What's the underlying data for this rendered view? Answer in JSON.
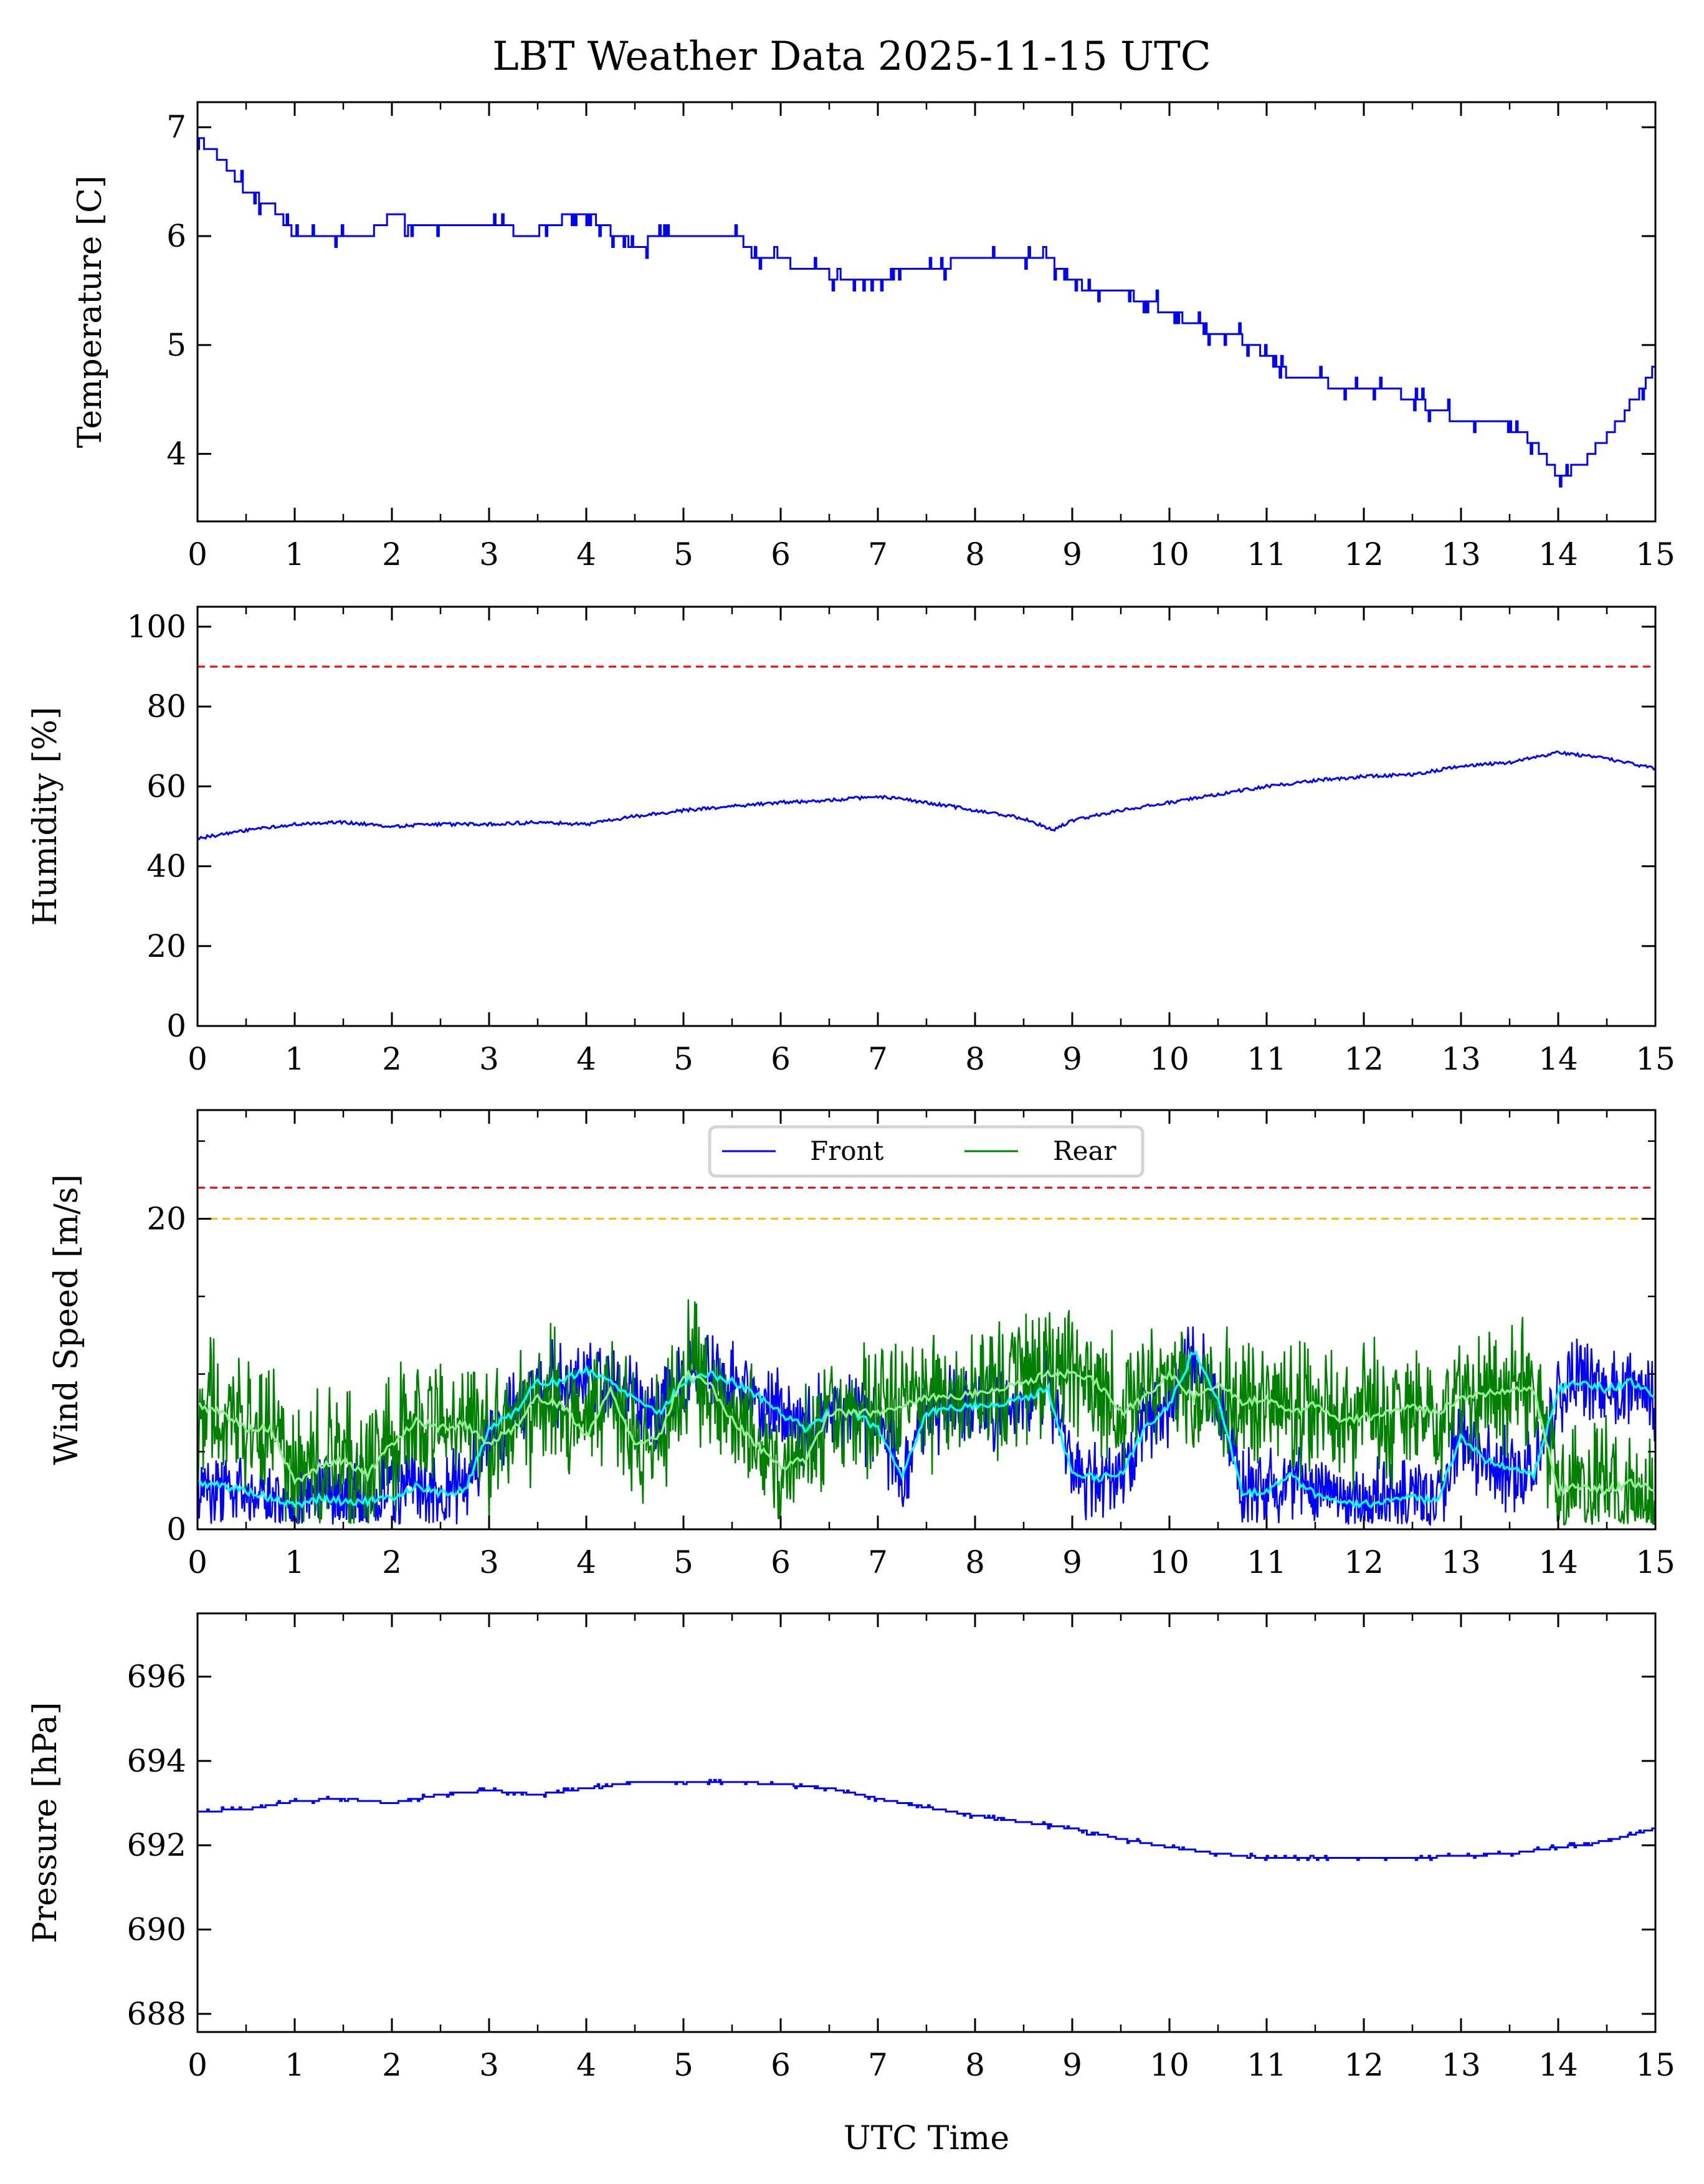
{
  "chart_data": {
    "title": "LBT Weather Data 2025-11-15 UTC",
    "xlabel": "UTC Time",
    "xlim": [
      0,
      15
    ],
    "xticks": [
      0,
      1,
      2,
      3,
      4,
      5,
      6,
      7,
      8,
      9,
      10,
      11,
      12,
      13,
      14,
      15
    ],
    "colors": {
      "front": "#0000ff",
      "rear": "#008000",
      "front_smooth": "#00ffff",
      "rear_smooth": "#90ee90",
      "limit_red": "#ff0000",
      "limit_orange": "#ffbf00",
      "main": "#0000ff"
    },
    "panels": [
      {
        "type": "line",
        "ylabel": "Temperature [C]",
        "ylim": [
          3.38,
          7.23
        ],
        "yticks": [
          4,
          5,
          6,
          7
        ],
        "step": true,
        "series": [
          {
            "color": "#0000ff",
            "x": [
              0,
              0.25,
              0.5,
              0.75,
              1,
              1.25,
              1.5,
              1.75,
              2,
              2.25,
              2.5,
              2.75,
              3,
              3.25,
              3.5,
              3.75,
              4,
              4.25,
              4.5,
              4.75,
              5,
              5.25,
              5.5,
              5.75,
              6,
              6.25,
              6.5,
              6.75,
              7,
              7.25,
              7.5,
              7.75,
              8,
              8.25,
              8.5,
              8.75,
              9,
              9.25,
              9.5,
              9.75,
              10,
              10.25,
              10.5,
              10.75,
              11,
              11.25,
              11.5,
              11.75,
              12,
              12.25,
              12.5,
              12.75,
              13,
              13.25,
              13.5,
              13.75,
              14,
              14.25,
              14.5,
              14.75,
              15
            ],
            "y": [
              6.9,
              6.7,
              6.4,
              6.3,
              6.0,
              6.0,
              5.95,
              6.0,
              6.2,
              6.1,
              6.1,
              6.1,
              6.1,
              6.05,
              6.05,
              6.15,
              6.2,
              6.05,
              5.9,
              6.0,
              6.05,
              6.05,
              6.05,
              5.8,
              5.8,
              5.65,
              5.65,
              5.55,
              5.6,
              5.7,
              5.7,
              5.75,
              5.75,
              5.8,
              5.8,
              5.8,
              5.6,
              5.5,
              5.5,
              5.4,
              5.3,
              5.2,
              5.1,
              5.05,
              4.9,
              4.7,
              4.7,
              4.6,
              4.6,
              4.6,
              4.5,
              4.4,
              4.3,
              4.25,
              4.25,
              4.1,
              3.8,
              3.9,
              4.15,
              4.45,
              4.8
            ]
          }
        ],
        "hlines": []
      },
      {
        "type": "line",
        "ylabel": "Humidity [%]",
        "ylim": [
          0,
          105
        ],
        "yticks": [
          0,
          20,
          40,
          60,
          80,
          100
        ],
        "series": [
          {
            "color": "#0000ff",
            "x": [
              0,
              0.5,
              1,
              1.5,
              2,
              2.5,
              3,
              3.5,
              4,
              4.5,
              5,
              5.5,
              6,
              6.5,
              7,
              7.5,
              8,
              8.5,
              8.8,
              9,
              9.5,
              10,
              10.5,
              11,
              11.5,
              12,
              12.5,
              13,
              13.5,
              14,
              14.5,
              15
            ],
            "y": [
              47,
              49,
              50.5,
              51,
              50,
              50.5,
              50.5,
              51,
              50.5,
              52.5,
              54,
              55,
              56,
              56.5,
              57.5,
              56,
              54,
              52,
              49,
              51.5,
              54,
              56,
              58,
              60,
              61.5,
              62.5,
              63,
              65,
              66,
              68.5,
              67,
              64.5
            ]
          }
        ],
        "hlines": [
          {
            "y": 90,
            "color": "#ff0000"
          }
        ]
      },
      {
        "type": "line",
        "ylabel": "Wind Speed [m/s]",
        "ylim": [
          0,
          27
        ],
        "yticks": [
          0,
          20
        ],
        "wind": true,
        "x": [
          0,
          0.25,
          0.5,
          0.75,
          1,
          1.25,
          1.5,
          1.75,
          2,
          2.25,
          2.5,
          2.75,
          3,
          3.25,
          3.5,
          3.75,
          4,
          4.25,
          4.5,
          4.75,
          5,
          5.25,
          5.5,
          5.75,
          6,
          6.25,
          6.5,
          6.75,
          7,
          7.25,
          7.5,
          7.75,
          8,
          8.25,
          8.5,
          8.75,
          9,
          9.25,
          9.5,
          9.75,
          10,
          10.25,
          10.5,
          10.75,
          11,
          11.25,
          11.5,
          11.75,
          12,
          12.25,
          12.5,
          12.75,
          13,
          13.25,
          13.5,
          13.75,
          14,
          14.25,
          14.5,
          14.75,
          15
        ],
        "series": [
          {
            "name": "Front",
            "color": "#0000ff",
            "smooth_color": "#00ffff",
            "y": [
              3,
              2.8,
              2.5,
              2.0,
              1.5,
              2.0,
              1.8,
              1.8,
              2.0,
              2.8,
              2.3,
              2.5,
              6.5,
              7.5,
              9.5,
              9.5,
              10.3,
              9.5,
              8.5,
              7.5,
              9.5,
              10,
              9.5,
              8.7,
              7.5,
              6.5,
              7.5,
              7.5,
              6.5,
              3.5,
              7.5,
              7.8,
              8.0,
              8.0,
              8.5,
              9.0,
              3.5,
              3.3,
              3.5,
              6.5,
              8.0,
              11.5,
              8.5,
              2.2,
              2.5,
              3.5,
              2.2,
              1.8,
              1.6,
              1.8,
              2.0,
              1.8,
              6.0,
              4.5,
              4.0,
              3.5,
              9.0,
              9.5,
              9.0,
              9.5,
              8.5
            ]
          },
          {
            "name": "Rear",
            "color": "#008000",
            "smooth_color": "#90ee90",
            "y": [
              8.0,
              7.5,
              6.5,
              6.5,
              3.0,
              4.0,
              4.5,
              3.5,
              5.5,
              7.0,
              6.5,
              6.8,
              5.5,
              6.5,
              8.5,
              8.0,
              6.0,
              9.0,
              5.5,
              6.0,
              10.0,
              9.5,
              7.0,
              5.5,
              4.0,
              4.5,
              7.5,
              7.5,
              7.5,
              8.0,
              8.5,
              8.5,
              8.8,
              9.0,
              9.5,
              10,
              10,
              9.5,
              7.5,
              8.5,
              10.0,
              8.5,
              9.5,
              8.0,
              8.5,
              7.5,
              8.0,
              7.0,
              7.2,
              7.5,
              7.8,
              7.5,
              8.5,
              8.8,
              9.0,
              9.0,
              2.5,
              2.8,
              2.5,
              3.0,
              2.5
            ]
          }
        ],
        "hlines": [
          {
            "y": 22,
            "color": "#ff0000"
          },
          {
            "y": 20,
            "color": "#ffbf00"
          }
        ],
        "legend": {
          "placement": "top-center",
          "entries": [
            "Front",
            "Rear"
          ]
        }
      },
      {
        "type": "line",
        "ylabel": "Pressure [hPa]",
        "ylim": [
          687.57,
          697.5
        ],
        "yticks": [
          688,
          690,
          692,
          694,
          696
        ],
        "step": true,
        "series": [
          {
            "color": "#0000ff",
            "x": [
              0,
              0.5,
              1,
              1.5,
              2,
              2.5,
              3,
              3.5,
              4,
              4.5,
              5,
              5.5,
              6,
              6.5,
              7,
              7.5,
              8,
              8.5,
              9,
              9.5,
              10,
              10.5,
              11,
              11.5,
              12,
              12.5,
              13,
              13.5,
              14,
              14.5,
              15
            ],
            "y": [
              692.8,
              692.85,
              693.05,
              693.1,
              693.0,
              693.2,
              693.3,
              693.2,
              693.35,
              693.5,
              693.5,
              693.5,
              693.45,
              693.35,
              693.1,
              692.9,
              692.7,
              692.55,
              692.4,
              692.15,
              691.95,
              691.8,
              691.7,
              691.7,
              691.7,
              691.7,
              691.75,
              691.8,
              691.95,
              692.1,
              692.4
            ]
          }
        ],
        "hlines": []
      }
    ]
  }
}
